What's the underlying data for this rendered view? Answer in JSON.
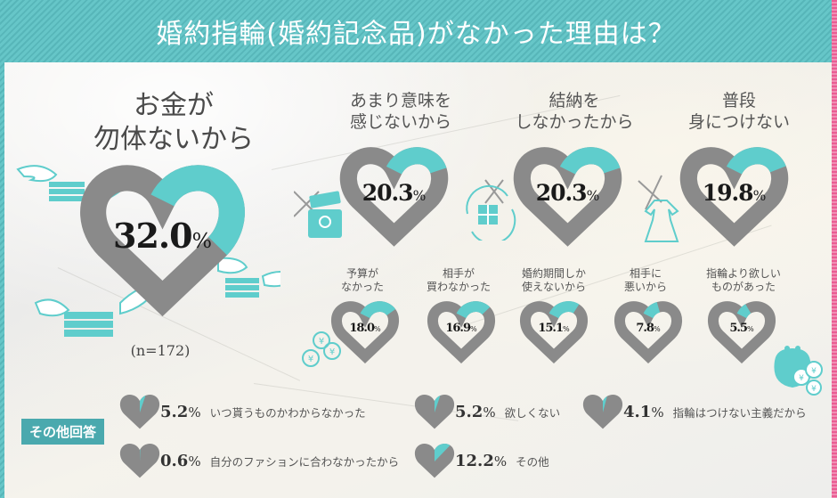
{
  "title": "婚約指輪(婚約記念品)がなかった理由は？",
  "colors": {
    "teal": "#5fcdcc",
    "gray": "#8a8a8a",
    "header": "#5fc0c2",
    "badge": "#4aa9ae",
    "pink_edge": "#ea5d93"
  },
  "sample_size": "(n=172)",
  "main": [
    {
      "label_lines": [
        "お金が",
        "勿体ないから"
      ],
      "value": 32.0,
      "display": "32.0",
      "icon": "flying-money-icon"
    },
    {
      "label_lines": [
        "あまり意味を",
        "感じないから"
      ],
      "value": 20.3,
      "display": "20.3",
      "icon": "ring-box-crossed-icon"
    },
    {
      "label_lines": [
        "結納を",
        "しなかったから"
      ],
      "value": 20.3,
      "display": "20.3",
      "icon": "gift-exchange-crossed-icon"
    },
    {
      "label_lines": [
        "普段",
        "身につけない"
      ],
      "value": 19.8,
      "display": "19.8",
      "icon": "dress-crossed-icon"
    }
  ],
  "secondary": [
    {
      "label_lines": [
        "予算が",
        "なかった"
      ],
      "value": 18.0,
      "display": "18.0"
    },
    {
      "label_lines": [
        "相手が",
        "買わなかった"
      ],
      "value": 16.9,
      "display": "16.9"
    },
    {
      "label_lines": [
        "婚約期間しか",
        "使えないから"
      ],
      "value": 15.1,
      "display": "15.1"
    },
    {
      "label_lines": [
        "相手に",
        "悪いから"
      ],
      "value": 7.8,
      "display": "7.8"
    },
    {
      "label_lines": [
        "指輪より欲しい",
        "ものがあった"
      ],
      "value": 5.5,
      "display": "5.5"
    }
  ],
  "others": {
    "badge": "その他回答",
    "items": [
      {
        "value": 5.2,
        "display": "5.2",
        "label": "いつ貰うものかわからなかった"
      },
      {
        "value": 5.2,
        "display": "5.2",
        "label": "欲しくない"
      },
      {
        "value": 4.1,
        "display": "4.1",
        "label": "指輪はつけない主義だから"
      },
      {
        "value": 0.6,
        "display": "0.6",
        "label": "自分のファションに合わなかったから"
      },
      {
        "value": 12.2,
        "display": "12.2",
        "label": "その他"
      }
    ]
  },
  "percent_symbol": "%",
  "chart_data": {
    "type": "pie",
    "title": "婚約指輪(婚約記念品)がなかった理由は？",
    "note": "heart-shaped donut gauges, multiple-answer survey",
    "n": 172,
    "categories": [
      "お金が勿体ないから",
      "あまり意味を感じないから",
      "結納をしなかったから",
      "普段身につけない",
      "予算がなかった",
      "相手が買わなかった",
      "婚約期間しか使えないから",
      "相手に悪いから",
      "指輪より欲しいものがあった",
      "いつ貰うものかわからなかった",
      "欲しくない",
      "指輪はつけない主義だから",
      "自分のファションに合わなかったから",
      "その他"
    ],
    "values": [
      32.0,
      20.3,
      20.3,
      19.8,
      18.0,
      16.9,
      15.1,
      7.8,
      5.5,
      5.2,
      5.2,
      4.1,
      0.6,
      12.2
    ],
    "unit": "%"
  }
}
